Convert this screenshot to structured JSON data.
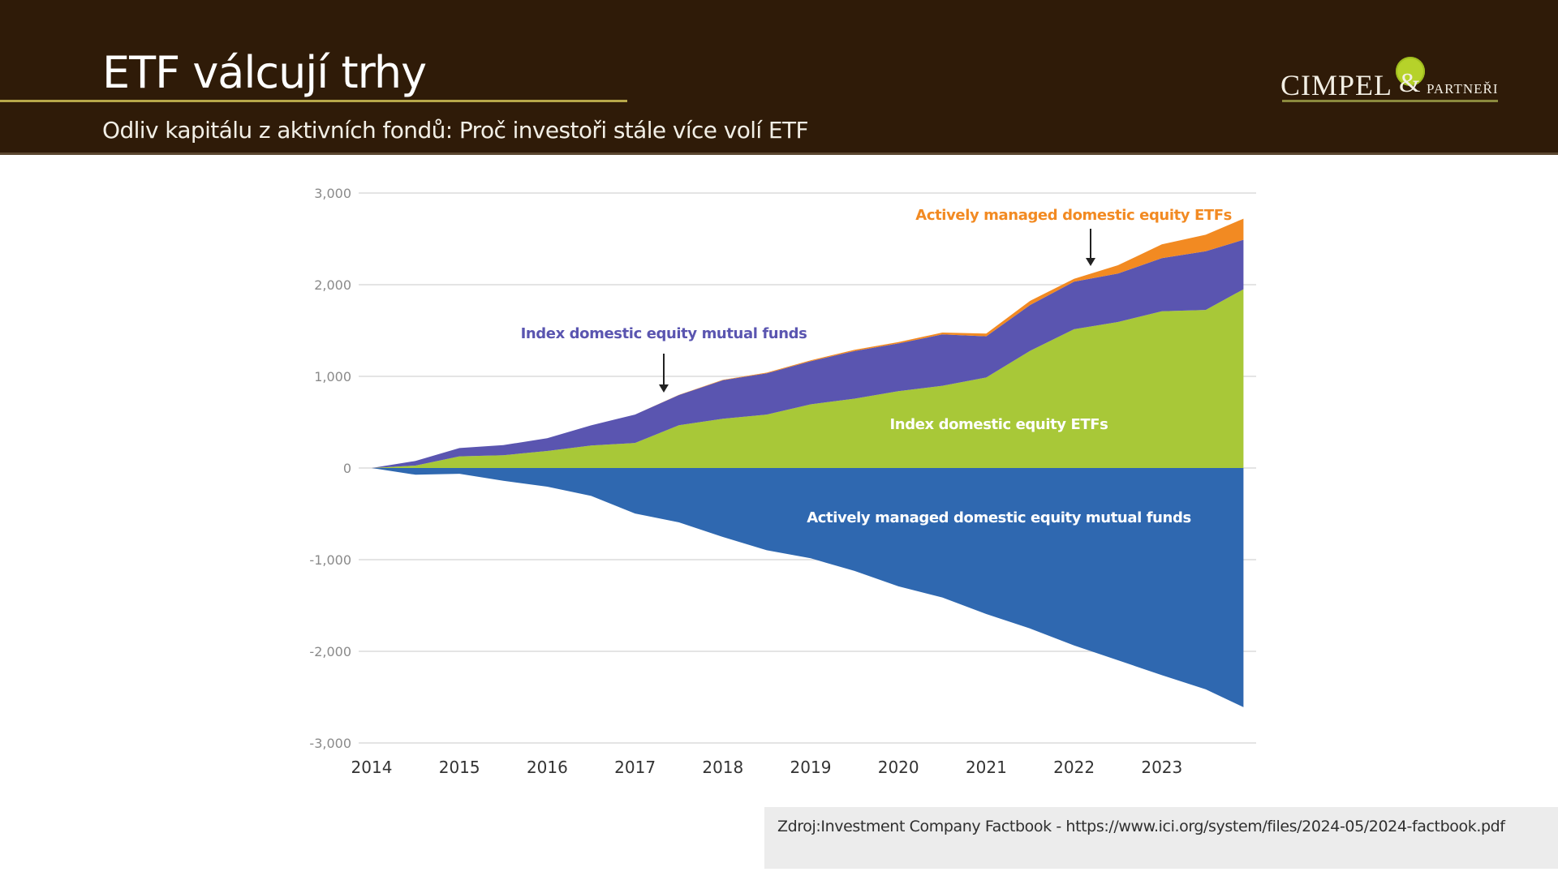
{
  "header": {
    "title": "ETF válcují trhy",
    "subtitle": "Odliv kapitálu z aktivních fondů: Proč investoři stále více volí ETF"
  },
  "logo": {
    "name": "CIMPEL",
    "ampersand": "&",
    "suffix": "PARTNEŘI",
    "leaf_color": "#b6d22a"
  },
  "source": {
    "text": "Zdroj:Investment Company Factbook - https://www.ici.org/system/files/2024-05/2024-factbook.pdf"
  },
  "chart_data": {
    "type": "area",
    "stacked": true,
    "title": "",
    "xlabel": "",
    "ylabel": "",
    "x": [
      2014.0,
      2014.5,
      2015.0,
      2015.5,
      2016.0,
      2016.5,
      2017.0,
      2017.5,
      2018.0,
      2018.5,
      2019.0,
      2019.5,
      2020.0,
      2020.5,
      2021.0,
      2021.5,
      2022.0,
      2022.5,
      2023.0,
      2023.5,
      2023.93
    ],
    "xlim": [
      2014,
      2024
    ],
    "ylim": [
      -3000,
      3000
    ],
    "x_ticks": [
      "2014",
      "2015",
      "2016",
      "2017",
      "2018",
      "2019",
      "2020",
      "2021",
      "2022",
      "2023"
    ],
    "y_ticks": [
      "3,000",
      "2,000",
      "1,000",
      "0",
      "-1,000",
      "-2,000",
      "-3,000"
    ],
    "y_tick_values": [
      3000,
      2000,
      1000,
      0,
      -1000,
      -2000,
      -3000
    ],
    "grid": true,
    "series": [
      {
        "name": "Index domestic equity ETFs",
        "color": "#a8c838",
        "values": [
          0,
          40,
          110,
          150,
          190,
          230,
          290,
          460,
          530,
          600,
          680,
          760,
          850,
          880,
          1000,
          1280,
          1500,
          1610,
          1700,
          1720,
          1950
        ]
      },
      {
        "name": "Index domestic equity mutual funds",
        "color": "#5a55b0",
        "values": [
          0,
          50,
          90,
          110,
          140,
          220,
          310,
          330,
          420,
          450,
          470,
          520,
          520,
          560,
          450,
          500,
          520,
          530,
          580,
          640,
          540
        ]
      },
      {
        "name": "Actively managed domestic equity ETFs",
        "color": "#f28a22",
        "values": [
          0,
          0,
          0,
          0,
          0,
          0,
          0,
          2,
          5,
          8,
          10,
          12,
          15,
          20,
          30,
          45,
          30,
          90,
          150,
          180,
          230
        ]
      },
      {
        "name": "Actively managed domestic equity mutual funds",
        "color": "#2f68b0",
        "values": [
          0,
          -60,
          -80,
          -130,
          -200,
          -320,
          -480,
          -600,
          -760,
          -880,
          -1000,
          -1120,
          -1280,
          -1430,
          -1580,
          -1750,
          -1950,
          -2080,
          -2270,
          -2420,
          -2610
        ]
      }
    ],
    "annotations": [
      {
        "text": "Actively managed domestic equity ETFs",
        "color": "#f28a22",
        "arrow_to_x": 2022.2,
        "arrow": true
      },
      {
        "text": "Index domestic equity mutual funds",
        "color": "#5a55b0",
        "arrow_to_x": 2017.3,
        "arrow": true
      },
      {
        "text": "Index domestic equity ETFs",
        "color": "#ffffff",
        "arrow": false
      },
      {
        "text": "Actively managed domestic equity mutual funds",
        "color": "#ffffff",
        "arrow": false
      }
    ],
    "legend": "inline-labels"
  }
}
